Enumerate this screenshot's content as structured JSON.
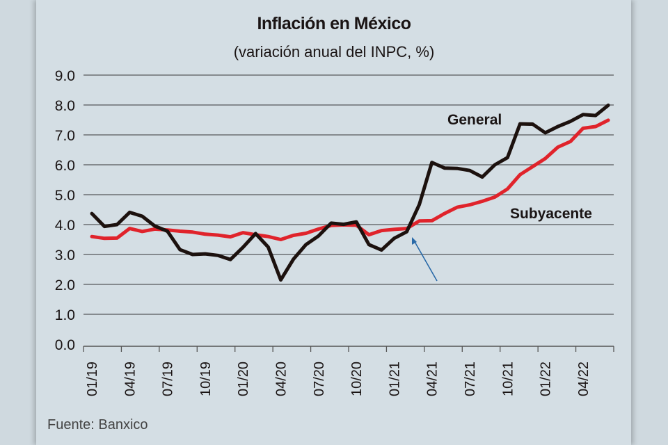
{
  "chart_data": {
    "type": "line",
    "title": "Inflación en México",
    "subtitle": "(variación anual del INPC, %)",
    "xlabel": "",
    "ylabel": "",
    "ylim": [
      0,
      9
    ],
    "yticks": [
      "0.0",
      "1.0",
      "2.0",
      "3.0",
      "4.0",
      "5.0",
      "6.0",
      "7.0",
      "8.0",
      "9.0"
    ],
    "xtick_labels": [
      "01/19",
      "04/19",
      "07/19",
      "10/19",
      "01/20",
      "04/20",
      "07/20",
      "10/20",
      "01/21",
      "04/21",
      "07/21",
      "10/21",
      "01/22",
      "04/22"
    ],
    "x": [
      "01/19",
      "02/19",
      "03/19",
      "04/19",
      "05/19",
      "06/19",
      "07/19",
      "08/19",
      "09/19",
      "10/19",
      "11/19",
      "12/19",
      "01/20",
      "02/20",
      "03/20",
      "04/20",
      "05/20",
      "06/20",
      "07/20",
      "08/20",
      "09/20",
      "10/20",
      "11/20",
      "12/20",
      "01/21",
      "02/21",
      "03/21",
      "04/21",
      "05/21",
      "06/21",
      "07/21",
      "08/21",
      "09/21",
      "10/21",
      "11/21",
      "12/21",
      "01/22",
      "02/22",
      "03/22",
      "04/22",
      "05/22",
      "06/22"
    ],
    "grid": true,
    "series": [
      {
        "name": "General",
        "color": "#1c110e",
        "values": [
          4.37,
          3.94,
          4.0,
          4.41,
          4.28,
          3.95,
          3.78,
          3.16,
          3.0,
          3.02,
          2.97,
          2.83,
          3.24,
          3.7,
          3.25,
          2.15,
          2.84,
          3.33,
          3.62,
          4.05,
          4.01,
          4.09,
          3.33,
          3.15,
          3.54,
          3.76,
          4.67,
          6.08,
          5.89,
          5.88,
          5.81,
          5.59,
          6.0,
          6.24,
          7.37,
          7.36,
          7.07,
          7.28,
          7.45,
          7.68,
          7.65,
          7.99
        ]
      },
      {
        "name": "Subyacente",
        "color": "#e0232b",
        "values": [
          3.6,
          3.54,
          3.55,
          3.87,
          3.77,
          3.85,
          3.82,
          3.78,
          3.75,
          3.68,
          3.65,
          3.59,
          3.73,
          3.66,
          3.6,
          3.5,
          3.64,
          3.71,
          3.85,
          3.97,
          3.99,
          3.98,
          3.66,
          3.8,
          3.84,
          3.87,
          4.12,
          4.13,
          4.37,
          4.58,
          4.66,
          4.78,
          4.92,
          5.19,
          5.67,
          5.94,
          6.21,
          6.59,
          6.78,
          7.22,
          7.28,
          7.49
        ]
      }
    ],
    "annotation_arrow_color": "#2a6aa8",
    "source": "Fuente: Banxico"
  }
}
